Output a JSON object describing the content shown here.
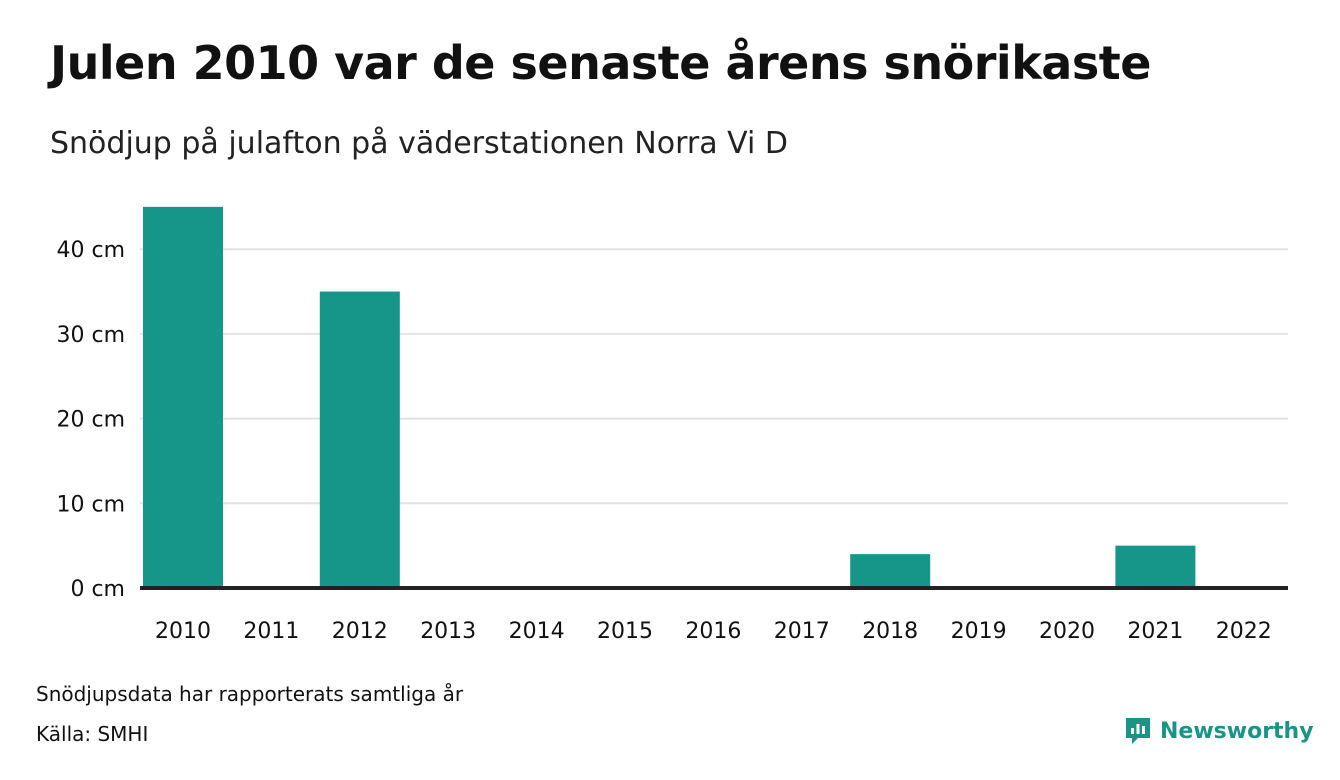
{
  "header": {
    "title": "Julen 2010 var de senaste årens snörikaste",
    "subtitle": "Snödjup på julafton på väderstationen Norra Vi D"
  },
  "footer": {
    "note": "Snödjupsdata har rapporterats samtliga år",
    "source": "Källa: SMHI",
    "brand": "Newsworthy"
  },
  "colors": {
    "bar": "#159688",
    "brand": "#1a9485",
    "grid": "#e2e2e2",
    "baseline": "#222222"
  },
  "chart_data": {
    "type": "bar",
    "title": "Julen 2010 var de senaste årens snörikaste",
    "subtitle": "Snödjup på julafton på väderstationen Norra Vi D",
    "categories": [
      "2010",
      "2011",
      "2012",
      "2013",
      "2014",
      "2015",
      "2016",
      "2017",
      "2018",
      "2019",
      "2020",
      "2021",
      "2022"
    ],
    "values": [
      45,
      0,
      35,
      0,
      0,
      0,
      0,
      0,
      4,
      0,
      0,
      5,
      0
    ],
    "ylim": [
      0,
      45
    ],
    "yticks": [
      0,
      10,
      20,
      30,
      40
    ],
    "ytick_labels": [
      "0 cm",
      "10 cm",
      "20 cm",
      "30 cm",
      "40 cm"
    ],
    "xlabel": "",
    "ylabel": "",
    "grid": true,
    "legend": "none"
  }
}
